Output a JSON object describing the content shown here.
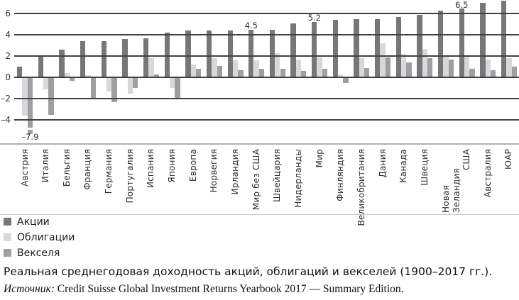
{
  "figure": {
    "caption": "Реальная среднегодовая доходность акций, облигаций и векселей (1900–2017 гг.).",
    "source_prefix": "Источник:",
    "source_text": " Credit Suisse Global Investment Returns Yearbook 2017 — Summary Edition."
  },
  "legend": {
    "items": [
      {
        "label": "Акции",
        "color": "#757779"
      },
      {
        "label": "Облигации",
        "color": "#d7d8d9"
      },
      {
        "label": "Векселя",
        "color": "#9d9fa2"
      }
    ]
  },
  "colors": {
    "gridline": "#424242",
    "baseline": "#b0b0b0",
    "separator": "#cccccc",
    "text": "#2e2e2e"
  },
  "chart_data": {
    "type": "bar",
    "title": "Реальная среднегодовая доходность акций, облигаций и векселей (1900–2017 гг.)",
    "xlabel": "",
    "ylabel": "",
    "ylim": [
      -6.3,
      7.4
    ],
    "grid": true,
    "legend_position": "bottom-left",
    "y_ticks": [
      6,
      4,
      2,
      0,
      -2,
      -4
    ],
    "categories": [
      "Австрия",
      "Италия",
      "Бельгия",
      "Франция",
      "Германия",
      "Португалия",
      "Испания",
      "Япония",
      "Европа",
      "Норвегия",
      "Ирландия",
      "Мир без США",
      "Швейцария",
      "Нидерланды",
      "Мир",
      "Финляндия",
      "Великобритания",
      "Дания",
      "Канада",
      "Швеция",
      "Новая Зеландия",
      "США",
      "Австралия",
      "ЮАР"
    ],
    "series": [
      {
        "name": "Акции",
        "color": "#757779",
        "values": [
          1.0,
          2.0,
          2.6,
          3.4,
          3.4,
          3.6,
          3.7,
          4.2,
          4.4,
          4.4,
          4.4,
          4.5,
          4.5,
          5.1,
          5.2,
          5.4,
          5.5,
          5.5,
          5.7,
          5.9,
          6.3,
          6.5,
          7.0,
          7.2
        ]
      },
      {
        "name": "Облигации",
        "color": "#d7d8d9",
        "values": [
          -3.6,
          -1.1,
          0.4,
          0.2,
          -1.3,
          -1.5,
          1.8,
          -1.0,
          1.2,
          1.8,
          1.6,
          1.6,
          2.3,
          1.7,
          1.9,
          0.3,
          1.8,
          3.2,
          2.2,
          2.7,
          2.1,
          2.0,
          1.7,
          1.8
        ]
      },
      {
        "name": "Векселя",
        "color": "#9d9fa2",
        "values": [
          -7.9,
          -3.5,
          -0.3,
          -2.0,
          -2.3,
          -1.0,
          0.3,
          -1.9,
          0.8,
          1.1,
          0.7,
          0.8,
          0.8,
          0.6,
          0.8,
          -0.5,
          0.9,
          1.9,
          1.4,
          1.8,
          1.7,
          0.8,
          0.7,
          1.0
        ]
      }
    ],
    "annotations": [
      {
        "category": "Австрия",
        "series": "Векселя",
        "text": "–7.9",
        "position": "below"
      },
      {
        "category": "Мир без США",
        "series": "Акции",
        "text": "4.5",
        "position": "above"
      },
      {
        "category": "Мир",
        "series": "Акции",
        "text": "5.2",
        "position": "above"
      },
      {
        "category": "США",
        "series": "Акции",
        "text": "6.5",
        "position": "above"
      }
    ],
    "broken_bar": {
      "category": "Австрия",
      "series": "Векселя",
      "value": -7.9,
      "drawn_to": -4.75
    }
  }
}
